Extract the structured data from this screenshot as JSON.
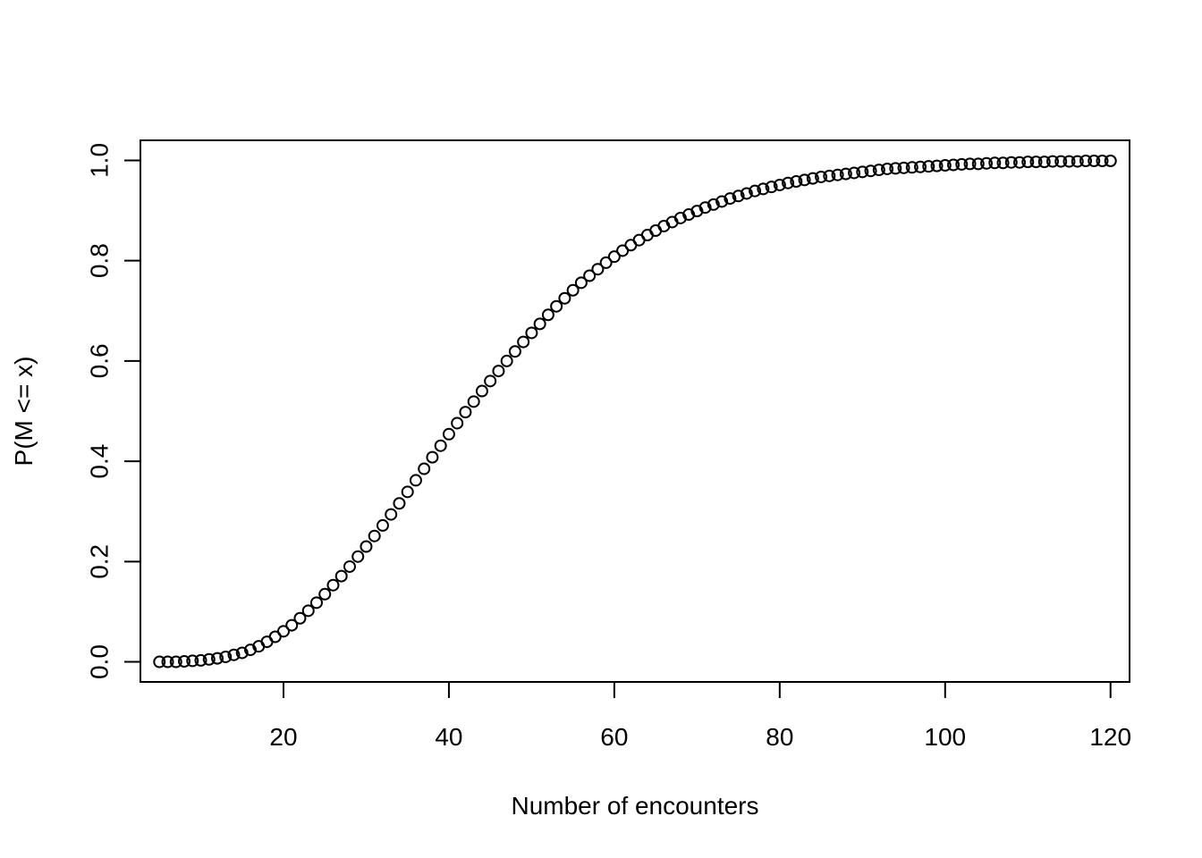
{
  "chart_data": {
    "type": "scatter",
    "title": "",
    "xlabel": "Number of encounters",
    "ylabel": "P(M <= x)",
    "xlim": [
      2.7,
      122.3
    ],
    "ylim": [
      -0.04,
      1.04
    ],
    "grid": false,
    "legend": "none",
    "x_ticks": [
      20,
      40,
      60,
      80,
      100,
      120
    ],
    "y_ticks": [
      0.0,
      0.2,
      0.4,
      0.6,
      0.8,
      1.0
    ],
    "x_tick_labels": [
      "20",
      "40",
      "60",
      "80",
      "100",
      "120"
    ],
    "y_tick_labels": [
      "0.0",
      "0.2",
      "0.4",
      "0.6",
      "0.8",
      "1.0"
    ],
    "series": [
      {
        "marker": "open-circle",
        "color": "#000000",
        "x": [
          5,
          6,
          7,
          8,
          9,
          10,
          11,
          12,
          13,
          14,
          15,
          16,
          17,
          18,
          19,
          20,
          21,
          22,
          23,
          24,
          25,
          26,
          27,
          28,
          29,
          30,
          31,
          32,
          33,
          34,
          35,
          36,
          37,
          38,
          39,
          40,
          41,
          42,
          43,
          44,
          45,
          46,
          47,
          48,
          49,
          50,
          51,
          52,
          53,
          54,
          55,
          56,
          57,
          58,
          59,
          60,
          61,
          62,
          63,
          64,
          65,
          66,
          67,
          68,
          69,
          70,
          71,
          72,
          73,
          74,
          75,
          76,
          77,
          78,
          79,
          80,
          81,
          82,
          83,
          84,
          85,
          86,
          87,
          88,
          89,
          90,
          91,
          92,
          93,
          94,
          95,
          96,
          97,
          98,
          99,
          100,
          101,
          102,
          103,
          104,
          105,
          106,
          107,
          108,
          109,
          110,
          111,
          112,
          113,
          114,
          115,
          116,
          117,
          118,
          119,
          120
        ],
        "y": [
          0.0,
          0.0,
          0.0,
          0.001,
          0.002,
          0.003,
          0.005,
          0.007,
          0.01,
          0.014,
          0.018,
          0.024,
          0.031,
          0.04,
          0.05,
          0.061,
          0.073,
          0.087,
          0.102,
          0.118,
          0.135,
          0.153,
          0.171,
          0.19,
          0.21,
          0.23,
          0.251,
          0.272,
          0.294,
          0.316,
          0.339,
          0.362,
          0.385,
          0.408,
          0.431,
          0.454,
          0.476,
          0.498,
          0.519,
          0.54,
          0.56,
          0.58,
          0.6,
          0.619,
          0.638,
          0.656,
          0.674,
          0.692,
          0.709,
          0.725,
          0.741,
          0.756,
          0.77,
          0.783,
          0.796,
          0.808,
          0.82,
          0.831,
          0.841,
          0.851,
          0.86,
          0.869,
          0.877,
          0.885,
          0.892,
          0.899,
          0.906,
          0.912,
          0.918,
          0.924,
          0.929,
          0.934,
          0.939,
          0.943,
          0.947,
          0.951,
          0.955,
          0.958,
          0.961,
          0.964,
          0.967,
          0.969,
          0.971,
          0.973,
          0.975,
          0.977,
          0.979,
          0.981,
          0.983,
          0.984,
          0.985,
          0.986,
          0.987,
          0.988,
          0.989,
          0.99,
          0.991,
          0.992,
          0.993,
          0.993,
          0.994,
          0.995,
          0.995,
          0.996,
          0.996,
          0.997,
          0.997,
          0.997,
          0.998,
          0.998,
          0.998,
          0.998,
          0.999,
          0.999,
          0.999,
          0.999
        ]
      }
    ]
  }
}
